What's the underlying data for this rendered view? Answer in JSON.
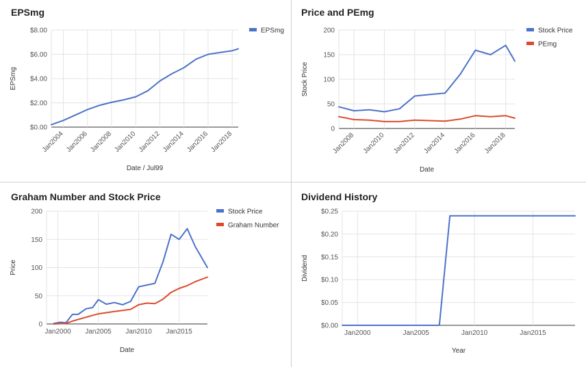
{
  "chart_data": [
    {
      "type": "line",
      "title": "EPSmg",
      "xlabel": "Date / Jul99",
      "ylabel": "EPSmg",
      "xlim": [
        2003.0,
        2018.5
      ],
      "ylim": [
        0,
        8
      ],
      "grid": true,
      "legend_position": "right",
      "x_ticks": [
        2004,
        2006,
        2008,
        2010,
        2012,
        2014,
        2016,
        2018
      ],
      "x_tick_labels": [
        "Jan2004",
        "Jan2006",
        "Jan2008",
        "Jan2010",
        "Jan2012",
        "Jan2014",
        "Jan2016",
        "Jan2018"
      ],
      "x_tick_rotation": -45,
      "y_ticks": [
        0,
        2,
        4,
        6,
        8
      ],
      "y_tick_labels": [
        "$0.00",
        "$2.00",
        "$4.00",
        "$6.00",
        "$8.00"
      ],
      "series": [
        {
          "name": "EPSmg",
          "color": "#4a72c9",
          "x": [
            2003,
            2004,
            2005,
            2006,
            2007,
            2008,
            2009,
            2010,
            2011,
            2012,
            2013,
            2014,
            2015,
            2016,
            2017,
            2018,
            2018.5
          ],
          "y": [
            0.2,
            0.55,
            1.0,
            1.45,
            1.8,
            2.05,
            2.25,
            2.5,
            3.0,
            3.8,
            4.4,
            4.9,
            5.6,
            6.0,
            6.15,
            6.3,
            6.45
          ]
        }
      ]
    },
    {
      "type": "line",
      "title": "Price and PEmg",
      "xlabel": "Date",
      "ylabel": "Stock Price",
      "xlim": [
        2007.0,
        2018.6
      ],
      "ylim": [
        0,
        200
      ],
      "grid": true,
      "legend_position": "right",
      "x_ticks": [
        2008,
        2010,
        2012,
        2014,
        2016,
        2018
      ],
      "x_tick_labels": [
        "Jan2008",
        "Jan2010",
        "Jan2012",
        "Jan2014",
        "Jan2016",
        "Jan2018"
      ],
      "x_tick_rotation": -45,
      "y_ticks": [
        0,
        50,
        100,
        150,
        200
      ],
      "y_tick_labels": [
        "0",
        "50",
        "100",
        "150",
        "200"
      ],
      "series": [
        {
          "name": "Stock Price",
          "color": "#4a72c9",
          "x": [
            2007,
            2008,
            2009,
            2010,
            2011,
            2012,
            2013,
            2014,
            2015,
            2016,
            2017,
            2018,
            2018.6
          ],
          "y": [
            44,
            36,
            38,
            34,
            40,
            66,
            69,
            72,
            110,
            159,
            150,
            169,
            137
          ]
        },
        {
          "name": "PEmg",
          "color": "#dc4a2a",
          "x": [
            2007,
            2008,
            2009,
            2010,
            2011,
            2012,
            2013,
            2014,
            2015,
            2016,
            2017,
            2018,
            2018.6
          ],
          "y": [
            24,
            18,
            17,
            14,
            14,
            17,
            16,
            15,
            19,
            26,
            24,
            26,
            21
          ]
        }
      ]
    },
    {
      "type": "line",
      "title": "Graham Number and Stock Price",
      "xlabel": "Date",
      "ylabel": "Price",
      "xlim": [
        1998.6,
        2018.5
      ],
      "ylim": [
        0,
        200
      ],
      "grid": true,
      "legend_position": "right",
      "x_ticks": [
        2000,
        2005,
        2010,
        2015
      ],
      "x_tick_labels": [
        "Jan2000",
        "Jan2005",
        "Jan2010",
        "Jan2015"
      ],
      "x_tick_rotation": 0,
      "y_ticks": [
        0,
        50,
        100,
        150,
        200
      ],
      "y_tick_labels": [
        "0",
        "50",
        "100",
        "150",
        "200"
      ],
      "series": [
        {
          "name": "Stock Price",
          "color": "#4a72c9",
          "x": [
            1999.5,
            2000.3,
            2001,
            2001.8,
            2002.5,
            2003.5,
            2004.3,
            2005,
            2006,
            2007,
            2008,
            2009,
            2010,
            2011,
            2012,
            2013,
            2014,
            2015,
            2016,
            2017,
            2018.5
          ],
          "y": [
            1,
            3,
            2,
            17,
            17,
            27,
            29,
            43,
            35,
            38,
            34,
            40,
            66,
            69,
            72,
            110,
            159,
            150,
            169,
            137,
            100
          ]
        },
        {
          "name": "Graham Number",
          "color": "#dc4a2a",
          "x": [
            1999.5,
            2001,
            2002,
            2003,
            2004,
            2005,
            2006,
            2007,
            2008,
            2009,
            2010,
            2011,
            2012,
            2013,
            2014,
            2015,
            2016,
            2017,
            2018.5
          ],
          "y": [
            0,
            1,
            6,
            10,
            14,
            18,
            20,
            22,
            24,
            26,
            34,
            37,
            36,
            44,
            56,
            63,
            68,
            75,
            83
          ]
        }
      ]
    },
    {
      "type": "line",
      "title": "Dividend History",
      "xlabel": "Year",
      "ylabel": "Dividend",
      "xlim": [
        1998.7,
        2018.6
      ],
      "ylim": [
        0,
        0.25
      ],
      "grid": true,
      "x_ticks": [
        2000,
        2005,
        2010,
        2015
      ],
      "x_tick_labels": [
        "Jan2000",
        "Jan2005",
        "Jan2010",
        "Jan2015"
      ],
      "x_tick_rotation": 0,
      "y_ticks": [
        0,
        0.05,
        0.1,
        0.15,
        0.2,
        0.25
      ],
      "y_tick_labels": [
        "$0.00",
        "$0.05",
        "$0.10",
        "$0.15",
        "$0.20",
        "$0.25"
      ],
      "series": [
        {
          "name": "",
          "color": "#4a72c9",
          "x": [
            1998.7,
            2007.0,
            2007.9,
            2018.6
          ],
          "y": [
            0,
            0,
            0.24,
            0.24
          ]
        }
      ]
    }
  ]
}
